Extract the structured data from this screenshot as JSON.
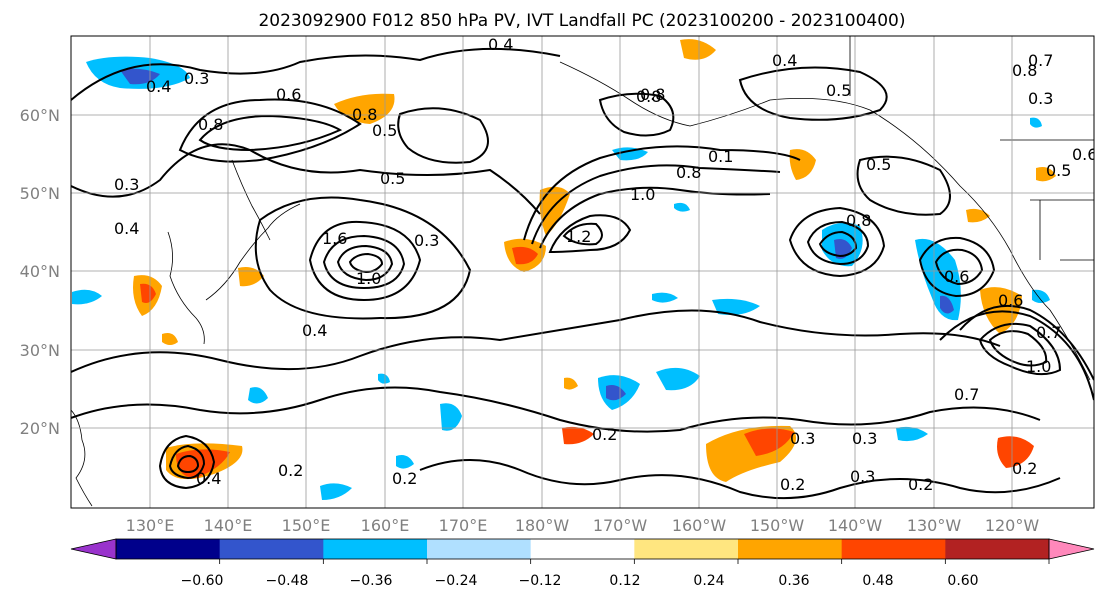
{
  "title": "2023092900 F012 850 hPa PV, IVT Landfall PC (2023100200 - 2023100400)",
  "map": {
    "lat_labels": [
      "60°N",
      "50°N",
      "40°N",
      "30°N",
      "20°N"
    ],
    "lon_labels": [
      "130°E",
      "140°E",
      "150°E",
      "160°E",
      "170°E",
      "180°W",
      "170°W",
      "160°W",
      "150°W",
      "140°W",
      "130°W",
      "120°W"
    ],
    "gridlines": true,
    "contour_labels": [
      "0.4",
      "0.3",
      "0.4",
      "0.6",
      "0.8",
      "0.8",
      "0.5",
      "0.3",
      "0.5",
      "0.4",
      "1.6",
      "1.0",
      "0.3",
      "0.4",
      "0.8",
      "0.1",
      "0.8",
      "1.0",
      "1.2",
      "0.5",
      "0.4",
      "0.8",
      "0.8",
      "0.5",
      "0.6",
      "0.7",
      "0.8",
      "0.3",
      "0.6",
      "0.6",
      "0.7",
      "1.0",
      "0.7",
      "0.2",
      "0.2",
      "0.2",
      "0.3",
      "0.3",
      "0.3",
      "0.2",
      "0.2",
      "0.2",
      "0.4",
      "0.5"
    ]
  },
  "colorbar": {
    "colors": [
      "#9933cc",
      "#00008b",
      "#3355cc",
      "#00bfff",
      "#b0e0ff",
      "#ffffff",
      "#ffe680",
      "#ffa500",
      "#ff4500",
      "#b22222",
      "#ff88bb"
    ],
    "tick_labels": [
      "−0.60",
      "−0.48",
      "−0.36",
      "−0.24",
      "−0.12",
      "0.12",
      "0.24",
      "0.36",
      "0.48",
      "0.60"
    ]
  }
}
